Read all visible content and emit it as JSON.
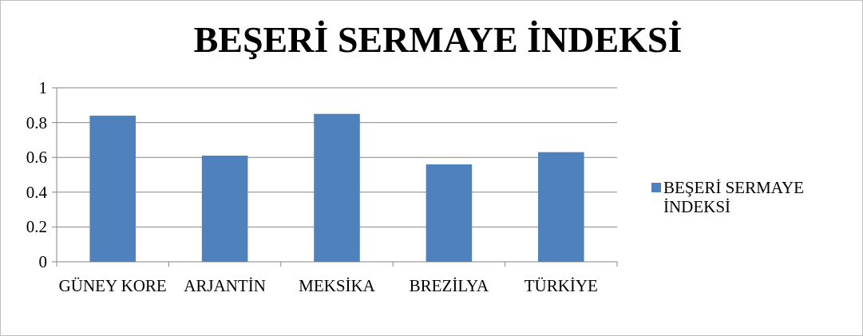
{
  "chart_data": {
    "type": "bar",
    "title": "BEŞERİ SERMAYE İNDEKSİ",
    "categories": [
      "GÜNEY KORE",
      "ARJANTİN",
      "MEKSİKA",
      "BREZİLYA",
      "TÜRKİYE"
    ],
    "series": [
      {
        "name": "BEŞERİ SERMAYE İNDEKSİ",
        "color": "#4f81bd",
        "values": [
          0.84,
          0.61,
          0.85,
          0.56,
          0.63
        ]
      }
    ],
    "ylim": [
      0,
      1
    ],
    "yticks": [
      0,
      0.2,
      0.4,
      0.6,
      0.8,
      1
    ],
    "grid": true,
    "legend": "right"
  }
}
